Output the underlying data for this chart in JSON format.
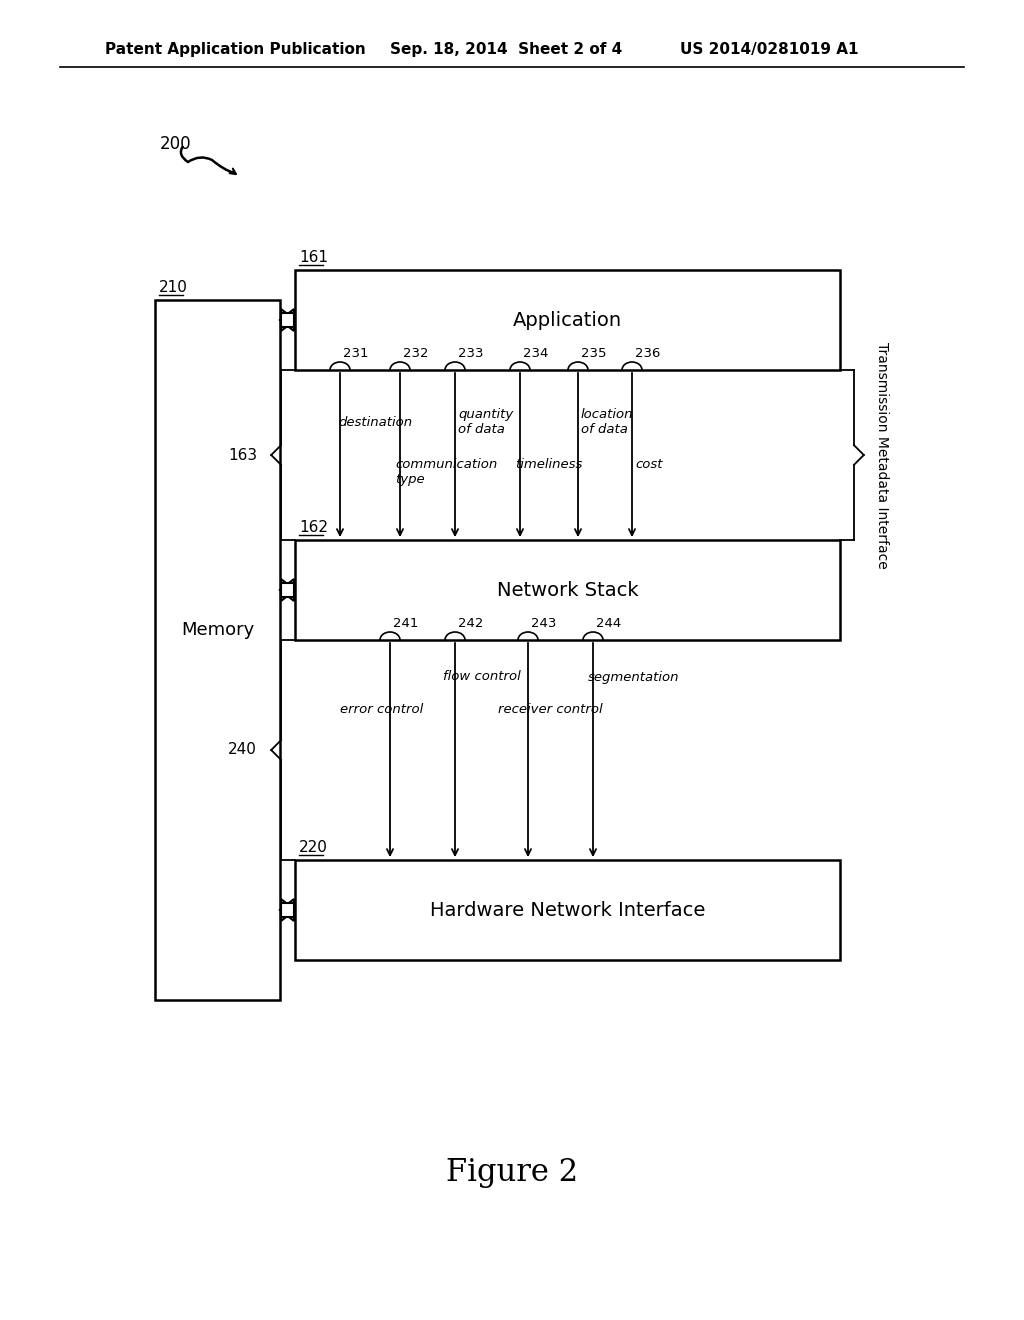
{
  "bg_color": "#ffffff",
  "header_left": "Patent Application Publication",
  "header_center": "Sep. 18, 2014  Sheet 2 of 4",
  "header_right": "US 2014/0281019 A1",
  "figure_label": "Figure 2",
  "fig_num": "200",
  "memory_label": "Memory",
  "memory_num": "210",
  "app_box": {
    "label": "Application",
    "num": "161"
  },
  "net_stack_box": {
    "label": "Network Stack",
    "num": "162"
  },
  "hw_box": {
    "label": "Hardware Network Interface",
    "num": "220"
  },
  "metadata_interface_label": "Transmission Metadata Interface",
  "group163_num": "163",
  "group240_num": "240",
  "top_arrow_nums": [
    "231",
    "232",
    "233",
    "234",
    "235",
    "236"
  ],
  "top_labels_high": [
    "destination",
    "",
    "quantity\nof data",
    "",
    "location\nof data",
    ""
  ],
  "top_labels_low": [
    "",
    "communication\ntype",
    "",
    "timeliness",
    "",
    "cost"
  ],
  "bot_arrow_nums": [
    "241",
    "242",
    "243",
    "244"
  ],
  "bot_labels_high": [
    "",
    "flow control",
    "",
    "segmentation"
  ],
  "bot_labels_low": [
    "error control",
    "",
    "receiver control",
    ""
  ]
}
